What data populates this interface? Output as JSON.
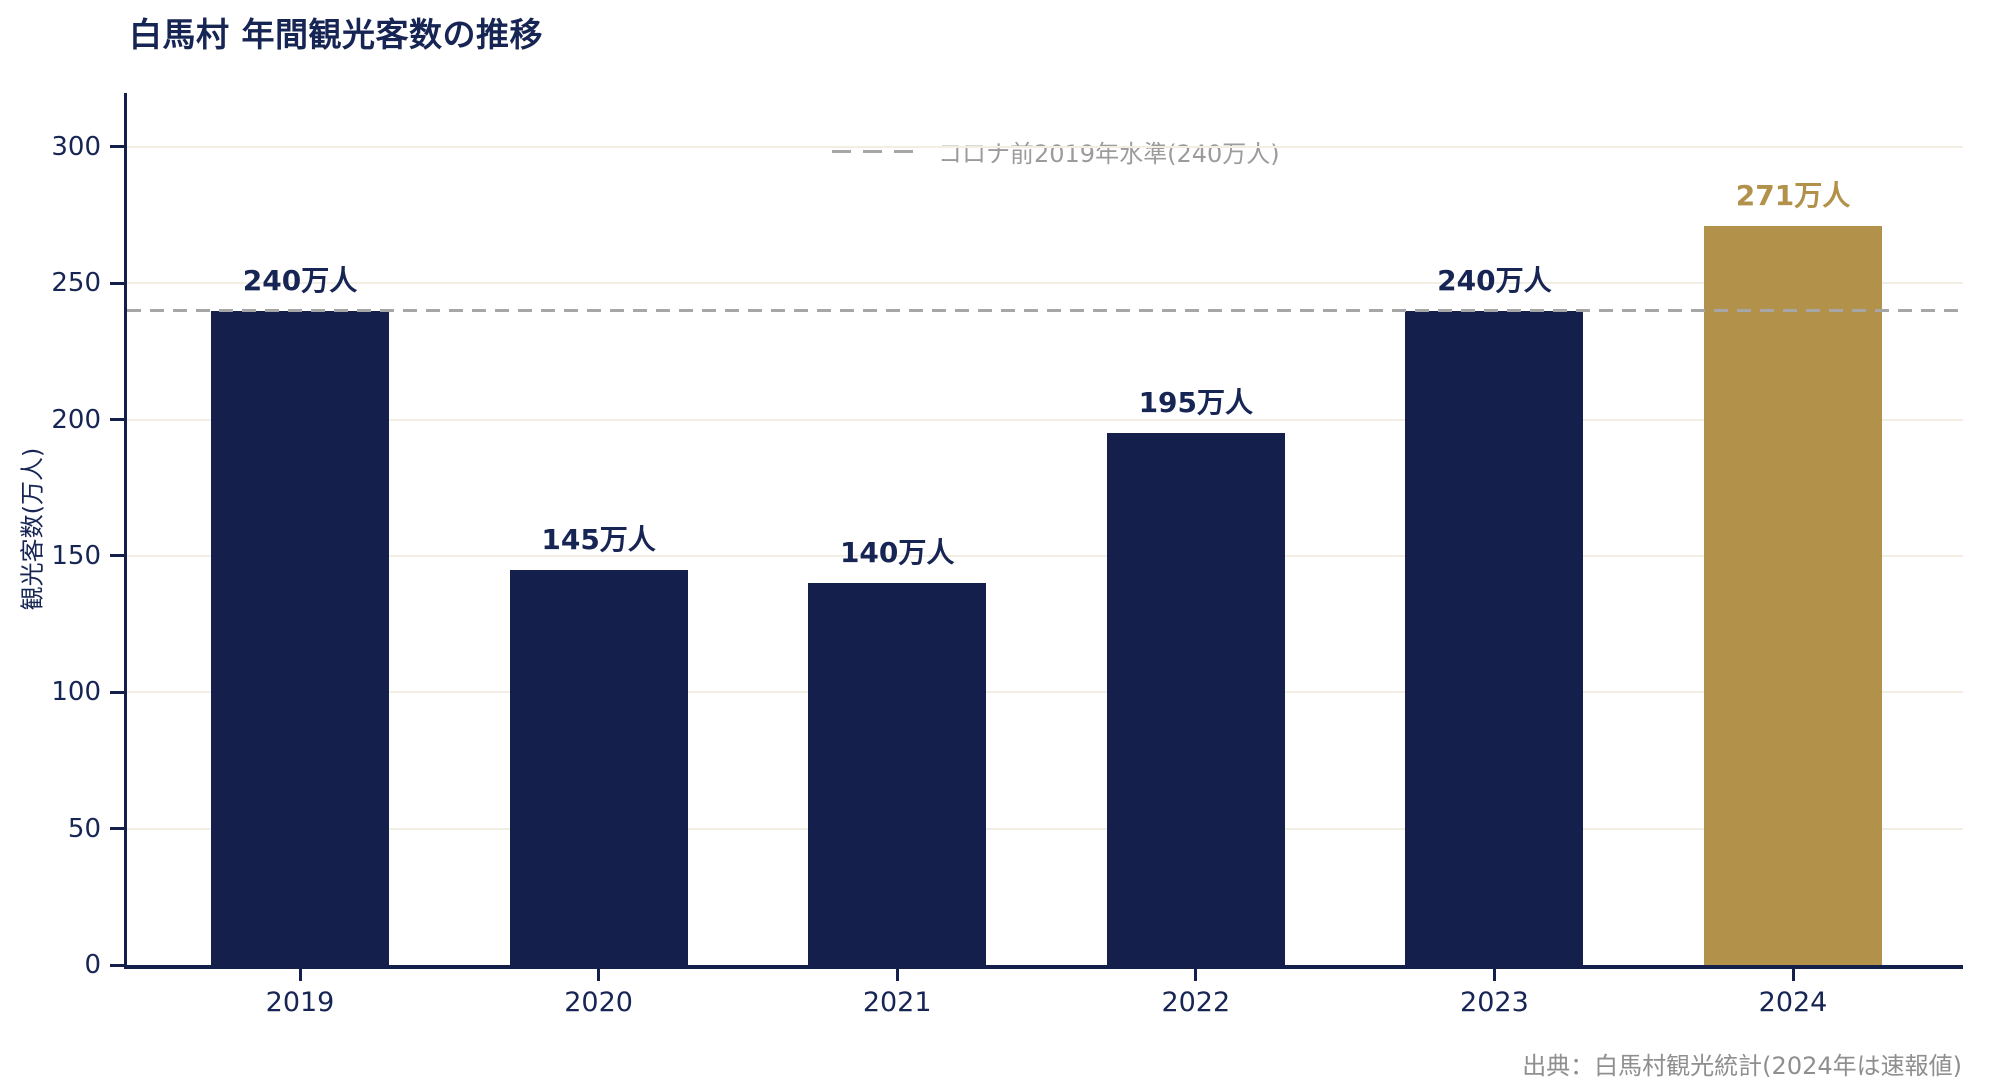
{
  "chart_data": {
    "type": "bar",
    "title": "白馬村 年間観光客数の推移",
    "categories": [
      "2019",
      "2020",
      "2021",
      "2022",
      "2023",
      "2024"
    ],
    "values": [
      240,
      145,
      140,
      195,
      240,
      271
    ],
    "bar_labels": [
      "240万人",
      "145万人",
      "140万人",
      "195万人",
      "240万人",
      "271万人"
    ],
    "xlabel": "",
    "ylabel": "観光客数(万人)",
    "yticks": [
      0,
      50,
      100,
      150,
      200,
      250,
      300
    ],
    "ylim": [
      0,
      320
    ],
    "grid": "horizontal",
    "legend_position": "upper-center-inside",
    "highlight_index": 5,
    "reference_line": {
      "value": 240,
      "legend_label": "コロナ前2019年水準(240万人)"
    },
    "source_note": "出典：白馬村観光統計(2024年は速報値)",
    "colors": {
      "bar": "#141f4c",
      "highlight_bar": "#b2914a",
      "axis": "#141f4c",
      "text_navy": "#172554",
      "reference_line": "#a6a6a6",
      "legend_text": "#9b9b9b",
      "source_text": "#8f8f8f",
      "gridline": "#f2eee4"
    }
  }
}
